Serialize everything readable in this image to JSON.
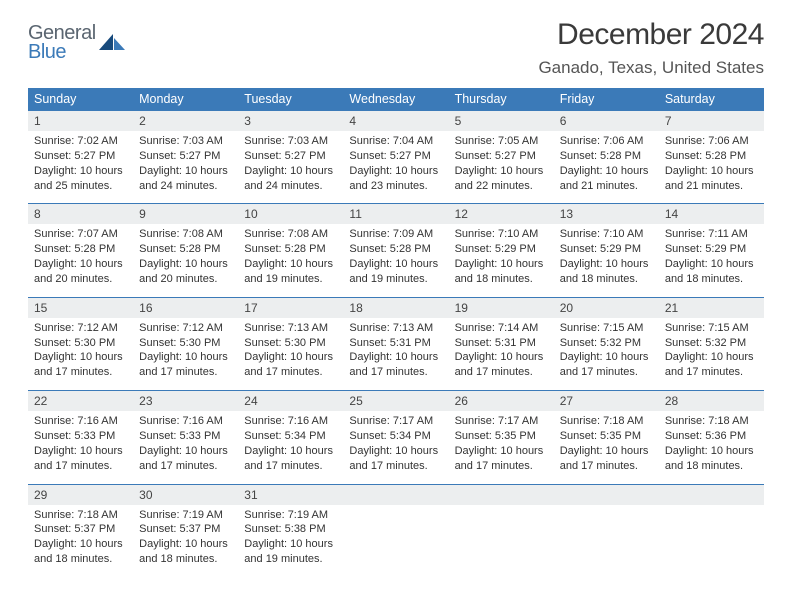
{
  "logo": {
    "line1": "General",
    "line2": "Blue"
  },
  "title": "December 2024",
  "location": "Ganado, Texas, United States",
  "style": {
    "accent_color": "#3b7ab8",
    "header_bg": "#3b7ab8",
    "header_text_color": "#ffffff",
    "daynum_bg": "#eceeef",
    "body_bg": "#ffffff",
    "title_fontsize": 30,
    "location_fontsize": 17,
    "day_label_fontsize": 12.5,
    "cell_fontsize": 11,
    "logo_gray": "#5a6570",
    "logo_blue": "#3b7ab8"
  },
  "day_labels": [
    "Sunday",
    "Monday",
    "Tuesday",
    "Wednesday",
    "Thursday",
    "Friday",
    "Saturday"
  ],
  "weeks": [
    [
      {
        "n": "1",
        "sr": "7:02 AM",
        "ss": "5:27 PM",
        "dl": "10 hours and 25 minutes."
      },
      {
        "n": "2",
        "sr": "7:03 AM",
        "ss": "5:27 PM",
        "dl": "10 hours and 24 minutes."
      },
      {
        "n": "3",
        "sr": "7:03 AM",
        "ss": "5:27 PM",
        "dl": "10 hours and 24 minutes."
      },
      {
        "n": "4",
        "sr": "7:04 AM",
        "ss": "5:27 PM",
        "dl": "10 hours and 23 minutes."
      },
      {
        "n": "5",
        "sr": "7:05 AM",
        "ss": "5:27 PM",
        "dl": "10 hours and 22 minutes."
      },
      {
        "n": "6",
        "sr": "7:06 AM",
        "ss": "5:28 PM",
        "dl": "10 hours and 21 minutes."
      },
      {
        "n": "7",
        "sr": "7:06 AM",
        "ss": "5:28 PM",
        "dl": "10 hours and 21 minutes."
      }
    ],
    [
      {
        "n": "8",
        "sr": "7:07 AM",
        "ss": "5:28 PM",
        "dl": "10 hours and 20 minutes."
      },
      {
        "n": "9",
        "sr": "7:08 AM",
        "ss": "5:28 PM",
        "dl": "10 hours and 20 minutes."
      },
      {
        "n": "10",
        "sr": "7:08 AM",
        "ss": "5:28 PM",
        "dl": "10 hours and 19 minutes."
      },
      {
        "n": "11",
        "sr": "7:09 AM",
        "ss": "5:28 PM",
        "dl": "10 hours and 19 minutes."
      },
      {
        "n": "12",
        "sr": "7:10 AM",
        "ss": "5:29 PM",
        "dl": "10 hours and 18 minutes."
      },
      {
        "n": "13",
        "sr": "7:10 AM",
        "ss": "5:29 PM",
        "dl": "10 hours and 18 minutes."
      },
      {
        "n": "14",
        "sr": "7:11 AM",
        "ss": "5:29 PM",
        "dl": "10 hours and 18 minutes."
      }
    ],
    [
      {
        "n": "15",
        "sr": "7:12 AM",
        "ss": "5:30 PM",
        "dl": "10 hours and 17 minutes."
      },
      {
        "n": "16",
        "sr": "7:12 AM",
        "ss": "5:30 PM",
        "dl": "10 hours and 17 minutes."
      },
      {
        "n": "17",
        "sr": "7:13 AM",
        "ss": "5:30 PM",
        "dl": "10 hours and 17 minutes."
      },
      {
        "n": "18",
        "sr": "7:13 AM",
        "ss": "5:31 PM",
        "dl": "10 hours and 17 minutes."
      },
      {
        "n": "19",
        "sr": "7:14 AM",
        "ss": "5:31 PM",
        "dl": "10 hours and 17 minutes."
      },
      {
        "n": "20",
        "sr": "7:15 AM",
        "ss": "5:32 PM",
        "dl": "10 hours and 17 minutes."
      },
      {
        "n": "21",
        "sr": "7:15 AM",
        "ss": "5:32 PM",
        "dl": "10 hours and 17 minutes."
      }
    ],
    [
      {
        "n": "22",
        "sr": "7:16 AM",
        "ss": "5:33 PM",
        "dl": "10 hours and 17 minutes."
      },
      {
        "n": "23",
        "sr": "7:16 AM",
        "ss": "5:33 PM",
        "dl": "10 hours and 17 minutes."
      },
      {
        "n": "24",
        "sr": "7:16 AM",
        "ss": "5:34 PM",
        "dl": "10 hours and 17 minutes."
      },
      {
        "n": "25",
        "sr": "7:17 AM",
        "ss": "5:34 PM",
        "dl": "10 hours and 17 minutes."
      },
      {
        "n": "26",
        "sr": "7:17 AM",
        "ss": "5:35 PM",
        "dl": "10 hours and 17 minutes."
      },
      {
        "n": "27",
        "sr": "7:18 AM",
        "ss": "5:35 PM",
        "dl": "10 hours and 17 minutes."
      },
      {
        "n": "28",
        "sr": "7:18 AM",
        "ss": "5:36 PM",
        "dl": "10 hours and 18 minutes."
      }
    ],
    [
      {
        "n": "29",
        "sr": "7:18 AM",
        "ss": "5:37 PM",
        "dl": "10 hours and 18 minutes."
      },
      {
        "n": "30",
        "sr": "7:19 AM",
        "ss": "5:37 PM",
        "dl": "10 hours and 18 minutes."
      },
      {
        "n": "31",
        "sr": "7:19 AM",
        "ss": "5:38 PM",
        "dl": "10 hours and 19 minutes."
      },
      null,
      null,
      null,
      null
    ]
  ],
  "labels": {
    "sunrise_prefix": "Sunrise: ",
    "sunset_prefix": "Sunset: ",
    "daylight_prefix": "Daylight: "
  }
}
